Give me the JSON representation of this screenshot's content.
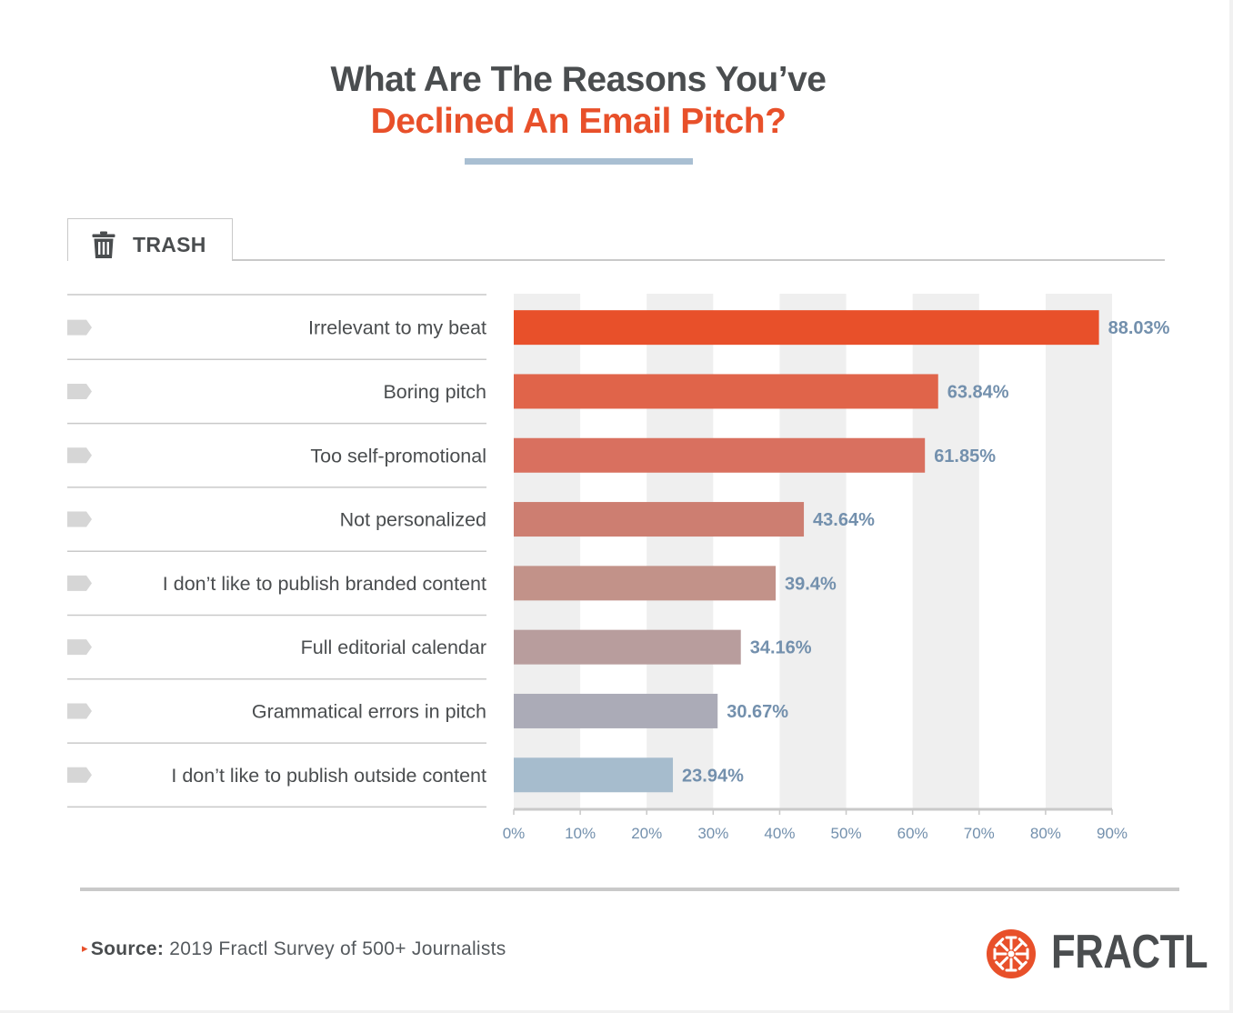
{
  "title": {
    "line1": "What Are The Reasons You’ve",
    "line2": "Declined An Email Pitch?"
  },
  "tab": {
    "icon": "trash-icon",
    "label": "TRASH"
  },
  "colors": {
    "title_dark": "#4a4d4f",
    "accent": "#e8502a",
    "value_label": "#7390ad",
    "bar_gradient": [
      "#e8502a",
      "#e0644a",
      "#d9705f",
      "#cd7e71",
      "#c29289",
      "#b89d9d",
      "#ababb7",
      "#a6bccd"
    ]
  },
  "chart_data": {
    "type": "bar",
    "orientation": "horizontal",
    "title": "What Are The Reasons You’ve Declined An Email Pitch?",
    "categories": [
      "Irrelevant to my beat",
      "Boring pitch",
      "Too self-promotional",
      "Not personalized",
      "I don’t like to publish branded content",
      "Full editorial calendar",
      "Grammatical errors in pitch",
      "I don’t like to publish outside content"
    ],
    "values": [
      88.03,
      63.84,
      61.85,
      43.64,
      39.4,
      34.16,
      30.67,
      23.94
    ],
    "value_labels": [
      "88.03%",
      "63.84%",
      "61.85%",
      "43.64%",
      "39.4%",
      "34.16%",
      "30.67%",
      "23.94%"
    ],
    "xlim": [
      0,
      90
    ],
    "xticks": [
      0,
      10,
      20,
      30,
      40,
      50,
      60,
      70,
      80,
      90
    ],
    "xtick_labels": [
      "0%",
      "10%",
      "20%",
      "30%",
      "40%",
      "50%",
      "60%",
      "70%",
      "80%",
      "90%"
    ],
    "xlabel": "",
    "ylabel": "",
    "grid": "alternating vertical bands"
  },
  "source": {
    "lead": "Source:",
    "text": "2019 Fractl Survey of 500+ Journalists"
  },
  "brand": {
    "icon": "fractl-logo-icon",
    "name": "FRACTL"
  }
}
